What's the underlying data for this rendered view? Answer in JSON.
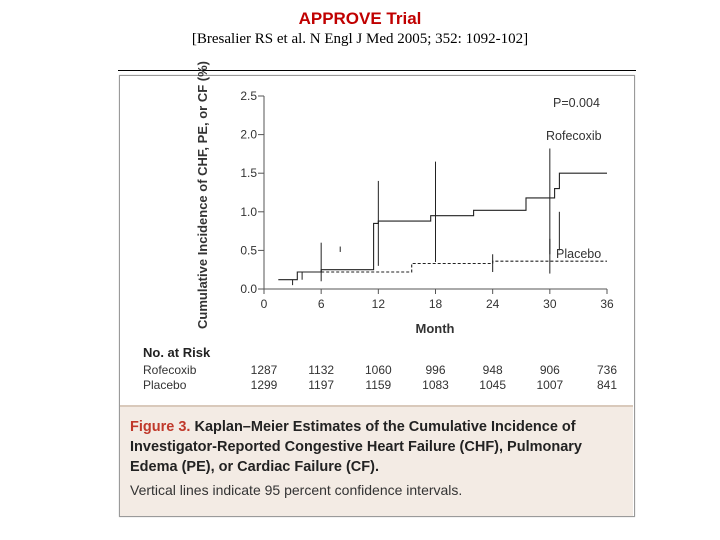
{
  "header": {
    "title": "APPROVE Trial",
    "citation": "[Bresalier RS et al. N Engl J Med 2005; 352: 1092-102]"
  },
  "colors": {
    "title": "#c00000",
    "caption_accent": "#c0392b",
    "caption_bg": "#f3ebe4",
    "line": "#222222"
  },
  "chart_data": {
    "type": "line",
    "title": "",
    "xlabel": "Month",
    "ylabel": "Cumulative Incidence of CHF, PE, or CF (%)",
    "xlim": [
      0,
      36
    ],
    "ylim": [
      0,
      2.5
    ],
    "x_ticks": [
      "0",
      "6",
      "12",
      "18",
      "24",
      "30",
      "36"
    ],
    "y_ticks": [
      "0.0",
      "0.5",
      "1.0",
      "1.5",
      "2.0",
      "2.5"
    ],
    "annotations": {
      "p_value": "P=0.004",
      "label_rofecoxib": "Rofecoxib",
      "label_placebo": "Placebo"
    },
    "series": [
      {
        "name": "Rofecoxib",
        "style": "solid",
        "step_points": [
          [
            1.5,
            0.12
          ],
          [
            3.5,
            0.12
          ],
          [
            3.5,
            0.22
          ],
          [
            6,
            0.22
          ],
          [
            6,
            0.25
          ],
          [
            11.5,
            0.25
          ],
          [
            11.5,
            0.85
          ],
          [
            12,
            0.85
          ],
          [
            12,
            0.88
          ],
          [
            17.5,
            0.88
          ],
          [
            17.5,
            0.95
          ],
          [
            22,
            0.95
          ],
          [
            22,
            1.02
          ],
          [
            27.5,
            1.02
          ],
          [
            27.5,
            1.18
          ],
          [
            30.5,
            1.18
          ],
          [
            30.5,
            1.3
          ],
          [
            31,
            1.3
          ],
          [
            31,
            1.5
          ],
          [
            36,
            1.5
          ]
        ],
        "ci_intervals": [
          [
            4,
            0.12,
            0.22
          ],
          [
            12,
            0.3,
            1.4
          ],
          [
            18,
            0.35,
            1.65
          ],
          [
            30,
            0.45,
            1.82
          ],
          [
            31,
            0.5,
            1.0
          ]
        ]
      },
      {
        "name": "Placebo",
        "style": "dashed",
        "step_points": [
          [
            6,
            0.22
          ],
          [
            15.5,
            0.22
          ],
          [
            15.5,
            0.33
          ],
          [
            24,
            0.33
          ],
          [
            24,
            0.36
          ],
          [
            36,
            0.36
          ]
        ],
        "ci_intervals": [
          [
            3,
            0.05,
            0.12
          ],
          [
            6,
            0.1,
            0.6
          ],
          [
            8,
            0.48,
            0.55
          ],
          [
            24,
            0.22,
            0.45
          ],
          [
            30,
            0.2,
            0.65
          ]
        ]
      }
    ]
  },
  "risk_table": {
    "title": "No. at Risk",
    "rows": [
      {
        "label": "Rofecoxib",
        "values": [
          "1287",
          "1132",
          "1060",
          "996",
          "948",
          "906",
          "736"
        ]
      },
      {
        "label": "Placebo",
        "values": [
          "1299",
          "1197",
          "1159",
          "1083",
          "1045",
          "1007",
          "841"
        ]
      }
    ]
  },
  "caption": {
    "figure_label": "Figure 3.",
    "headline": "Kaplan–Meier Estimates of the Cumulative Incidence of Investigator-Reported Congestive Heart Failure (CHF), Pulmonary Edema (PE), or Cardiac Failure (CF).",
    "note": "Vertical lines indicate 95 percent confidence intervals."
  }
}
